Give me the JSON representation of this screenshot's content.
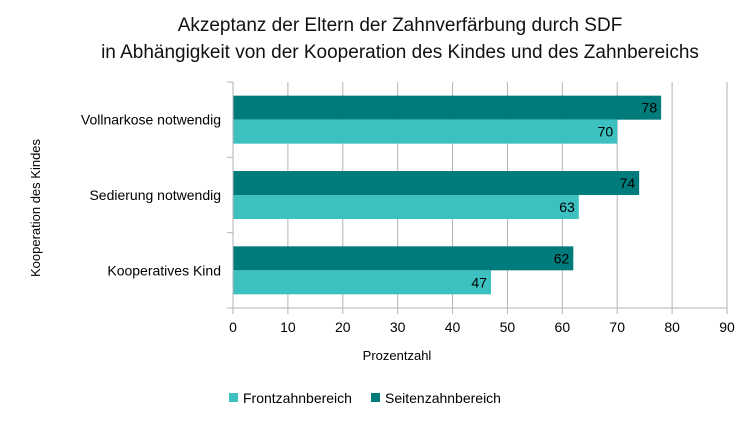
{
  "chart_data": {
    "type": "bar",
    "orientation": "horizontal",
    "title_lines": [
      "Akzeptanz der Eltern der Zahnverfärbung durch SDF",
      "in Abhängigkeit von der Kooperation des Kindes und des Zahnbereichs"
    ],
    "xlabel": "Prozentzahl",
    "ylabel": "Kooperation des Kindes",
    "categories": [
      "Vollnarkose notwendig",
      "Sedierung notwendig",
      "Kooperatives Kind"
    ],
    "series": [
      {
        "name": "Seitenzahnbereich",
        "color": "#007b7b",
        "values": [
          78,
          74,
          62
        ]
      },
      {
        "name": "Frontzahnbereich",
        "color": "#3cc0c0",
        "values": [
          70,
          63,
          47
        ]
      }
    ],
    "xlim": [
      0,
      90
    ],
    "xticks": [
      0,
      10,
      20,
      30,
      40,
      50,
      60,
      70,
      80,
      90
    ],
    "xtick_labels": [
      "0",
      "10",
      "20",
      "30",
      "40",
      "50",
      "60",
      "70",
      "80",
      "90"
    ],
    "grid": "vertical",
    "legend_position": "bottom",
    "legend": [
      {
        "name": "Frontzahnbereich",
        "color": "#3cc0c0"
      },
      {
        "name": "Seitenzahnbereich",
        "color": "#007b7b"
      }
    ]
  }
}
